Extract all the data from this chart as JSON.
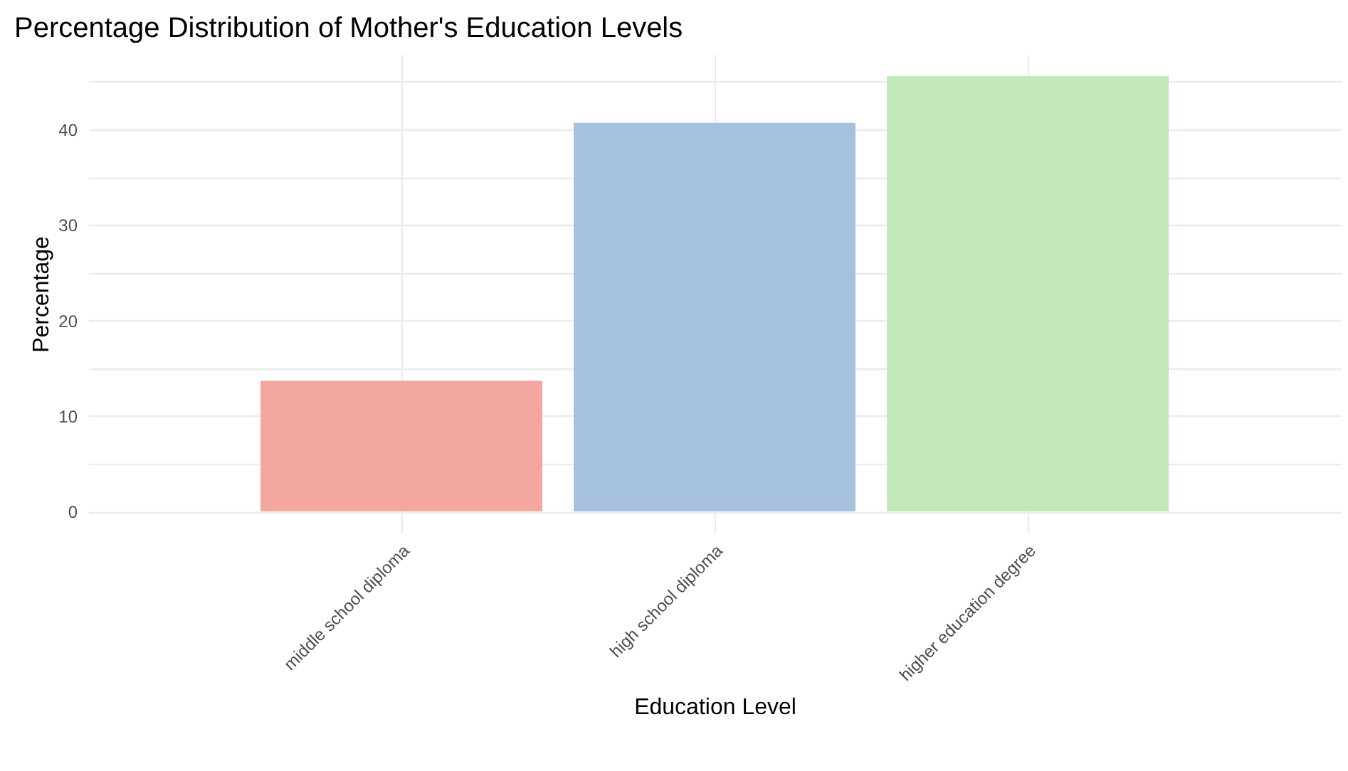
{
  "chart_data": {
    "type": "bar",
    "title": "Percentage Distribution of Mother's Education Levels",
    "xlabel": "Education Level",
    "ylabel": "Percentage",
    "categories": [
      "middle school diploma",
      "high school diploma",
      "higher education degree"
    ],
    "values": [
      13.7,
      40.7,
      45.6
    ],
    "colors": [
      "#f4a6a0",
      "#a6c1dd",
      "#c3e8b9"
    ],
    "ylim": [
      -2.3,
      47.9
    ],
    "yticks": [
      0,
      {
        "value": 5,
        "label": null
      },
      10,
      {
        "value": 15,
        "label": null
      },
      20,
      {
        "value": 25,
        "label": null
      },
      30,
      {
        "value": 35,
        "label": null
      },
      40,
      {
        "value": 45,
        "label": null
      }
    ],
    "grid": true
  }
}
